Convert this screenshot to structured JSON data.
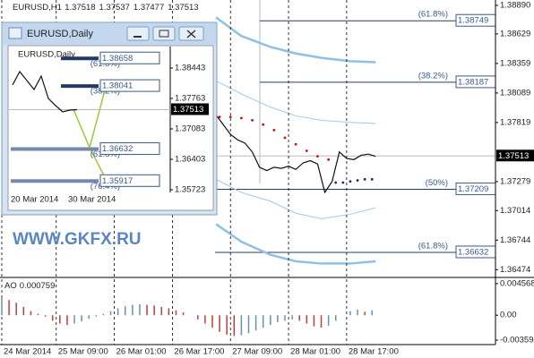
{
  "watermark": "WWW.GKFX.RU",
  "chart_data": [
    {
      "type": "line",
      "symbol": "EURUSD,H1",
      "ohlc": [
        1.37518,
        1.37537,
        1.37477,
        1.37513
      ],
      "current": 1.37513,
      "xlim": [
        0,
        136
      ],
      "ylim": [
        1.36419,
        1.38939
      ],
      "yticks": [
        {
          "value": 1.3889,
          "label": "1.38890"
        },
        1.38629,
        1.38359,
        1.38089,
        1.37819,
        1.37279,
        1.37014,
        1.36744,
        1.36474
      ],
      "levels": [
        {
          "value": 1.38749,
          "label": "(61.8%)"
        },
        {
          "value": 1.38187,
          "label": "(38.2%)"
        },
        {
          "value": 1.37209,
          "label": "(50%)"
        },
        {
          "value": 1.36632,
          "label": "(61.8%)"
        }
      ],
      "series": [
        {
          "color": "#111111",
          "style": "line",
          "x": [
            59,
            61,
            63,
            65,
            67,
            69,
            71,
            73,
            75,
            77,
            79,
            81,
            83,
            85,
            87,
            89,
            91,
            93,
            95,
            97,
            99,
            101,
            103
          ],
          "values": [
            1.3789,
            1.378,
            1.3771,
            1.3766,
            1.3763,
            1.3755,
            1.3741,
            1.3738,
            1.3741,
            1.374,
            1.3742,
            1.3739,
            1.3745,
            1.3747,
            1.3744,
            1.3718,
            1.3728,
            1.3755,
            1.3749,
            1.3748,
            1.3752,
            1.3753,
            1.3751
          ]
        },
        {
          "color": "#8fc0e6",
          "style": "thick",
          "x": [
            59,
            66,
            74,
            81,
            88,
            96,
            103
          ],
          "values": [
            1.3878,
            1.3861,
            1.3851,
            1.3845,
            1.3841,
            1.3838,
            1.3837
          ]
        },
        {
          "color": "#9fcbe9",
          "style": "thin",
          "x": [
            59,
            66,
            74,
            81,
            88,
            96,
            103
          ],
          "values": [
            1.382,
            1.3808,
            1.3796,
            1.3788,
            1.3784,
            1.3782,
            1.3781
          ]
        },
        {
          "color": "#9fcbe9",
          "style": "thin",
          "x": [
            59,
            66,
            74,
            81,
            88,
            96,
            103
          ],
          "values": [
            1.373,
            1.3718,
            1.371,
            1.3699,
            1.3694,
            1.3698,
            1.3704
          ]
        },
        {
          "color": "#8fc0e6",
          "style": "thick",
          "x": [
            59,
            66,
            74,
            81,
            88,
            96,
            103
          ],
          "values": [
            1.3689,
            1.3673,
            1.3661,
            1.3655,
            1.3653,
            1.3653,
            1.3655
          ]
        },
        {
          "color": "#cc1111",
          "style": "dots",
          "x": [
            60,
            63,
            66,
            69,
            72,
            75,
            78,
            81,
            84,
            87,
            90
          ],
          "values": [
            1.3787,
            1.3787,
            1.3786,
            1.3784,
            1.378,
            1.3775,
            1.3768,
            1.3762,
            1.3756,
            1.3751,
            1.3748
          ]
        },
        {
          "color": "#1a2f5a",
          "style": "dots",
          "x": [
            92,
            94,
            96,
            98,
            100,
            102
          ],
          "values": [
            1.3727,
            1.3727,
            1.3728,
            1.3729,
            1.373,
            1.373
          ]
        }
      ]
    },
    {
      "type": "bar",
      "label": "AO",
      "last": 0.000759,
      "up_color": "#6a8fb0",
      "down_color": "#b84040",
      "xlim": [
        0,
        136
      ],
      "ylim": [
        -0.00424,
        0.00533
      ],
      "yticks": [
        0.004568,
        {
          "value": 0,
          "label": "0.00"
        },
        -0.003598
      ],
      "xticks": [
        {
          "value": 0,
          "label": "24 Mar 2014"
        },
        {
          "value": 15,
          "label": "25 Mar 09:00"
        },
        {
          "value": 31,
          "label": "26 Mar 01:00"
        },
        {
          "value": 47,
          "label": "26 Mar 17:00"
        },
        {
          "value": 63,
          "label": "27 Mar 09:00"
        },
        {
          "value": 79,
          "label": "28 Mar 01:00"
        },
        {
          "value": 95,
          "label": "28 Mar 17:00"
        }
      ],
      "x": [
        0,
        2,
        4,
        6,
        8,
        10,
        12,
        14,
        16,
        18,
        20,
        22,
        24,
        26,
        28,
        30,
        32,
        34,
        36,
        38,
        40,
        42,
        44,
        46,
        48,
        50,
        52,
        54,
        56,
        58,
        60,
        62,
        64,
        66,
        68,
        70,
        72,
        74,
        76,
        78,
        80,
        82,
        84,
        86,
        88,
        90,
        92,
        94,
        96,
        98,
        100,
        102
      ],
      "values": [
        0.0025,
        0.0022,
        0.0018,
        0.0012,
        0.0006,
        0.0002,
        -0.0002,
        -0.0008,
        -0.0012,
        -0.0014,
        -0.0012,
        -0.0009,
        -0.0005,
        -0.0002,
        0.0002,
        0.0006,
        0.001,
        0.0013,
        0.0015,
        0.0016,
        0.0015,
        0.0014,
        0.0012,
        0.001,
        0.0007,
        0.0004,
        0,
        -0.0006,
        -0.0012,
        -0.0018,
        -0.0024,
        -0.0028,
        -0.003,
        -0.0029,
        -0.0026,
        -0.0022,
        -0.0018,
        -0.0014,
        -0.001,
        -0.0008,
        -0.0006,
        -0.0008,
        -0.0012,
        -0.0016,
        -0.0018,
        -0.0015,
        -0.0008,
        0,
        0.0006,
        0.0008,
        0.0005,
        0.0007
      ]
    },
    {
      "type": "line",
      "title": "EURUSD,Daily",
      "symbol": "EURUSD,Daily",
      "current": 1.37513,
      "xlim": [
        -0.5,
        22
      ],
      "ylim": [
        1.35663,
        1.38923
      ],
      "yticks": [
        1.38443,
        1.37763,
        1.37083,
        1.36403,
        1.35723
      ],
      "xticks": [
        {
          "value": 0,
          "label": "20 Mar 2014"
        },
        {
          "value": 8,
          "label": "30 Mar 2014"
        }
      ],
      "levels": [
        {
          "value": 1.38658,
          "label": "(61.8%)"
        },
        {
          "value": 1.38041,
          "label": "(38.2%)"
        },
        {
          "value": 1.36632,
          "label": "(61.8%)"
        },
        {
          "value": 1.35917,
          "label": "(76.4%)"
        }
      ],
      "series": [
        {
          "color": "#111111",
          "style": "line",
          "x": [
            0,
            1,
            2,
            3,
            4,
            5,
            6,
            7,
            8,
            9
          ],
          "values": [
            1.38063,
            1.38363,
            1.38163,
            1.37963,
            1.38263,
            1.37763,
            1.37603,
            1.37463,
            1.37503,
            1.37513
          ]
        }
      ]
    }
  ]
}
